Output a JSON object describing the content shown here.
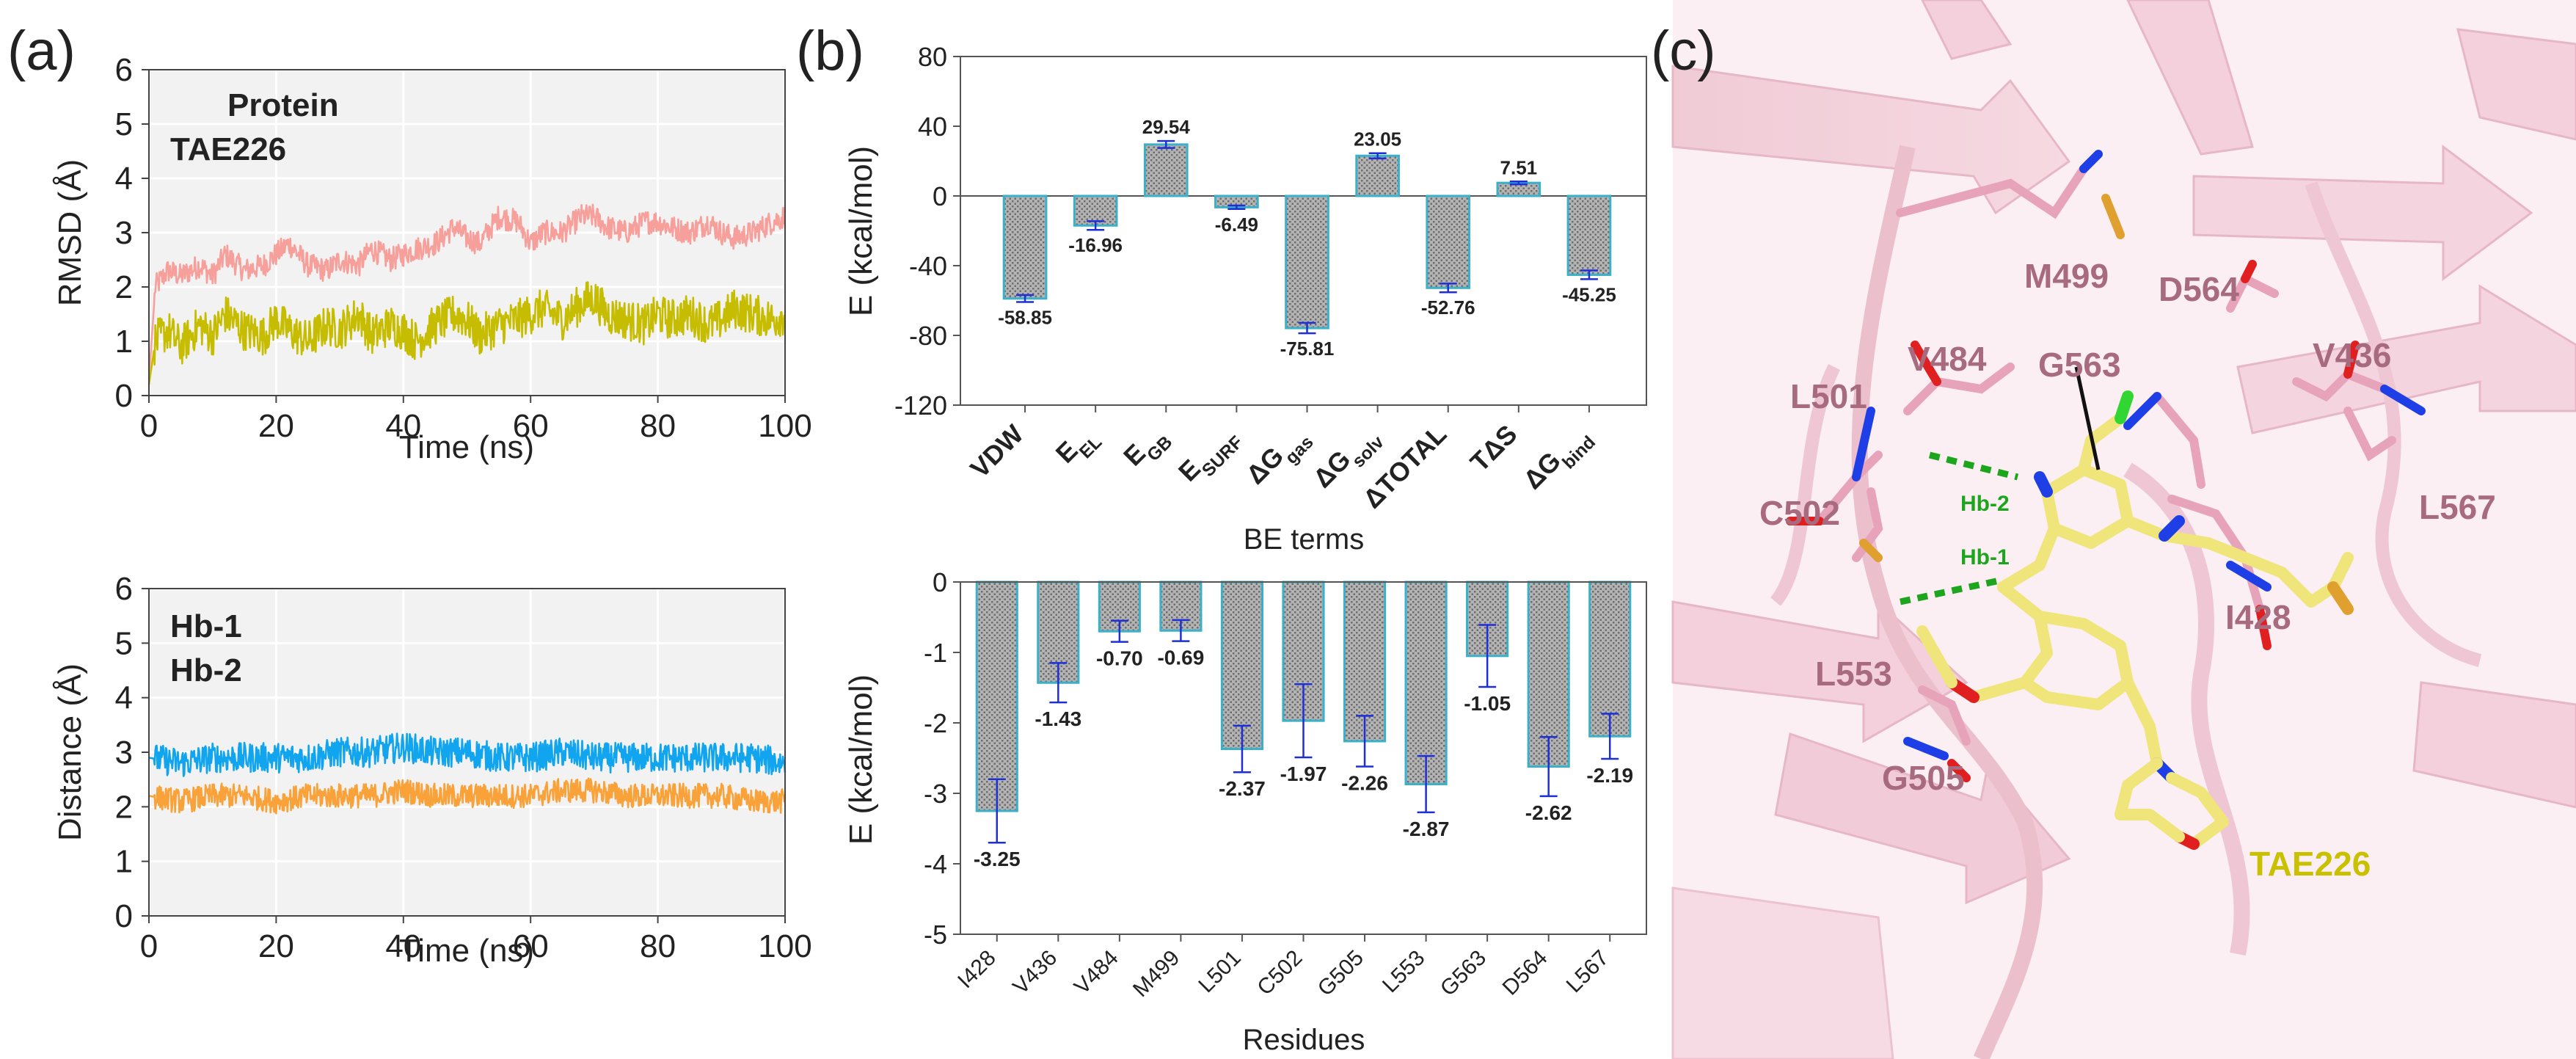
{
  "panel_labels": [
    "(a)",
    "(b)",
    "(c)"
  ],
  "colors": {
    "protein": "#f7a09b",
    "tae226": "#c7bd00",
    "hb1": "#12a5ef",
    "hb2": "#f9a23a",
    "bar_edge": "#3ab0c9",
    "bar_fill": "#b9b9b9",
    "error": "#1f2fd6",
    "plot_bg": "#f2f2f2",
    "residue_label": "#a86a7e",
    "hbond": "#1ea51e",
    "tae226_label": "#c9c000"
  },
  "chart_data": [
    {
      "id": "a-top",
      "type": "line",
      "title": "",
      "xlabel": "Time (ns)",
      "ylabel": "RMSD (Å)",
      "xlim": [
        0,
        100
      ],
      "ylim": [
        0,
        6
      ],
      "xticks": [
        "0",
        "20",
        "40",
        "60",
        "80",
        "100"
      ],
      "yticks": [
        "0",
        "1",
        "2",
        "3",
        "4",
        "5",
        "6"
      ],
      "grid": true,
      "legend": "top-left",
      "series": [
        {
          "name": "Protein",
          "color": "#f7a09b",
          "x": [
            0,
            1,
            3,
            5,
            8,
            10,
            12,
            15,
            18,
            20,
            22,
            25,
            28,
            30,
            33,
            35,
            38,
            40,
            42,
            45,
            48,
            50,
            52,
            55,
            58,
            60,
            62,
            65,
            68,
            70,
            72,
            75,
            78,
            80,
            82,
            85,
            88,
            90,
            92,
            95,
            98,
            100
          ],
          "values": [
            0.3,
            2.0,
            2.3,
            2.2,
            2.4,
            2.2,
            2.6,
            2.3,
            2.4,
            2.6,
            2.8,
            2.4,
            2.3,
            2.5,
            2.4,
            2.7,
            2.5,
            2.6,
            2.7,
            2.8,
            3.1,
            2.9,
            2.8,
            3.3,
            3.2,
            2.8,
            3.0,
            3.0,
            3.3,
            3.3,
            3.1,
            3.0,
            3.2,
            3.2,
            3.1,
            3.0,
            3.2,
            3.0,
            2.9,
            3.0,
            3.2,
            3.3
          ]
        },
        {
          "name": "TAE226",
          "color": "#c7bd00",
          "x": [
            0,
            1,
            3,
            5,
            8,
            10,
            12,
            15,
            18,
            20,
            22,
            25,
            28,
            30,
            33,
            35,
            38,
            40,
            42,
            45,
            48,
            50,
            52,
            55,
            58,
            60,
            62,
            65,
            68,
            70,
            72,
            75,
            78,
            80,
            82,
            85,
            88,
            90,
            92,
            95,
            98,
            100
          ],
          "values": [
            0.2,
            1.0,
            1.2,
            0.9,
            1.3,
            1.1,
            1.5,
            1.2,
            1.1,
            1.4,
            1.2,
            1.0,
            1.3,
            1.2,
            1.5,
            1.1,
            1.3,
            1.2,
            1.0,
            1.3,
            1.5,
            1.4,
            1.1,
            1.3,
            1.4,
            1.5,
            1.6,
            1.4,
            1.7,
            1.8,
            1.5,
            1.4,
            1.3,
            1.5,
            1.4,
            1.5,
            1.3,
            1.4,
            1.6,
            1.5,
            1.4,
            1.5
          ]
        }
      ]
    },
    {
      "id": "a-bottom",
      "type": "line",
      "title": "",
      "xlabel": "Time (ns)",
      "ylabel": "Distance (Å)",
      "xlim": [
        0,
        100
      ],
      "ylim": [
        0,
        6
      ],
      "xticks": [
        "0",
        "20",
        "40",
        "60",
        "80",
        "100"
      ],
      "yticks": [
        "0",
        "1",
        "2",
        "3",
        "4",
        "5",
        "6"
      ],
      "grid": true,
      "legend": "top-left",
      "series": [
        {
          "name": "Hb-1",
          "color": "#12a5ef",
          "x": [
            0,
            5,
            10,
            15,
            20,
            25,
            30,
            35,
            40,
            45,
            50,
            55,
            60,
            65,
            70,
            75,
            80,
            85,
            90,
            95,
            100
          ],
          "values": [
            2.9,
            2.8,
            2.9,
            2.9,
            2.9,
            2.9,
            3.0,
            3.0,
            3.1,
            3.0,
            3.0,
            2.9,
            2.9,
            3.0,
            2.9,
            2.9,
            2.9,
            2.9,
            2.9,
            2.9,
            2.8
          ]
        },
        {
          "name": "Hb-2",
          "color": "#f9a23a",
          "x": [
            0,
            5,
            10,
            15,
            20,
            25,
            30,
            35,
            40,
            45,
            50,
            55,
            60,
            65,
            70,
            75,
            80,
            85,
            90,
            95,
            100
          ],
          "values": [
            2.2,
            2.1,
            2.2,
            2.2,
            2.1,
            2.2,
            2.2,
            2.2,
            2.3,
            2.2,
            2.2,
            2.2,
            2.2,
            2.3,
            2.3,
            2.2,
            2.2,
            2.2,
            2.2,
            2.1,
            2.1
          ]
        }
      ]
    },
    {
      "id": "b-top",
      "type": "bar",
      "title": "",
      "xlabel": "BE terms",
      "ylabel": "E (kcal/mol)",
      "ylim": [
        -120,
        80
      ],
      "yticks": [
        "-120",
        "-80",
        "-40",
        "0",
        "40",
        "80"
      ],
      "categories": [
        {
          "main": "VDW",
          "sub": ""
        },
        {
          "main": "E",
          "sub": "EL"
        },
        {
          "main": "E",
          "sub": "GB"
        },
        {
          "main": "E",
          "sub": "SURF"
        },
        {
          "main": "ΔG",
          "sub": "gas"
        },
        {
          "main": "ΔG",
          "sub": "solv"
        },
        {
          "main": "ΔTOTAL",
          "sub": ""
        },
        {
          "main": "TΔS",
          "sub": ""
        },
        {
          "main": "ΔG",
          "sub": "bind"
        }
      ],
      "values": [
        -58.85,
        -16.96,
        29.54,
        -6.49,
        -75.81,
        23.05,
        -52.76,
        7.51,
        -45.25
      ],
      "errors": [
        2.0,
        2.5,
        2.0,
        1.0,
        3.0,
        1.5,
        2.5,
        0.8,
        2.5
      ],
      "labels": [
        "-58.85",
        "-16.96",
        "29.54",
        "-6.49",
        "-75.81",
        "23.05",
        "-52.76",
        "7.51",
        "-45.25"
      ]
    },
    {
      "id": "b-bottom",
      "type": "bar",
      "title": "",
      "xlabel": "Residues",
      "ylabel": "E (kcal/mol)",
      "ylim": [
        -5,
        0
      ],
      "yticks": [
        "-5",
        "-4",
        "-3",
        "-2",
        "-1",
        "0"
      ],
      "categories": [
        "I428",
        "V436",
        "V484",
        "M499",
        "L501",
        "C502",
        "G505",
        "L553",
        "G563",
        "D564",
        "L567"
      ],
      "values": [
        -3.25,
        -1.43,
        -0.7,
        -0.69,
        -2.37,
        -1.97,
        -2.26,
        -2.87,
        -1.05,
        -2.62,
        -2.19
      ],
      "errors": [
        0.45,
        0.28,
        0.15,
        0.15,
        0.33,
        0.52,
        0.36,
        0.4,
        0.44,
        0.42,
        0.32
      ],
      "labels": [
        "-3.25",
        "-1.43",
        "-0.70",
        "-0.69",
        "-2.37",
        "-1.97",
        "-2.26",
        "-2.87",
        "-1.05",
        "-2.62",
        "-2.19"
      ]
    }
  ],
  "structure": {
    "residue_labels": [
      "M499",
      "D564",
      "V484",
      "G563",
      "V436",
      "L501",
      "C502",
      "L567",
      "I428",
      "L553",
      "G505"
    ],
    "hbond_labels": [
      "Hb-2",
      "Hb-1"
    ],
    "ligand_label": "TAE226"
  }
}
